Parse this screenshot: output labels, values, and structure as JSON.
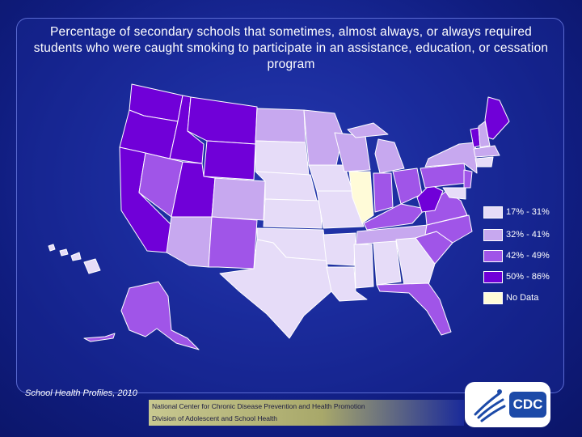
{
  "slide": {
    "title": "Percentage of secondary schools that sometimes, almost always, or always required students who were caught smoking to participate in an assistance, education, or cessation program",
    "source": "School Health Profiles, 2010",
    "footer_line1": "National Center for Chronic Disease Prevention and Health Promotion",
    "footer_line2": "Division of Adolescent and School Health",
    "logo_text": "CDC"
  },
  "legend": [
    {
      "label": "17% - 31%",
      "color": "#e6dcf8"
    },
    {
      "label": "32% - 41%",
      "color": "#c7a8ef"
    },
    {
      "label": "42% - 49%",
      "color": "#a055e8"
    },
    {
      "label": "50% - 86%",
      "color": "#7000d8"
    },
    {
      "label": "No Data",
      "color": "#fffbd8"
    }
  ],
  "colors": {
    "border": "#ffffff"
  }
}
